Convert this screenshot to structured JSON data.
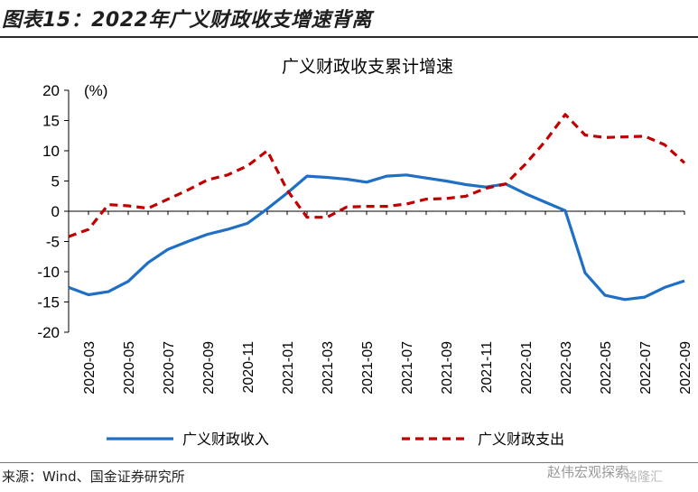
{
  "figure": {
    "label": "图表15：2022年广义财政收支增速背离",
    "source": "来源：Wind、国金证券研究所",
    "watermark": "赵伟宏观探索",
    "watermark2": "格隆汇"
  },
  "chart_data": {
    "type": "line",
    "title": "广义财政收支累计增速",
    "ylabel": "(%)",
    "ylim": [
      -20,
      20
    ],
    "yticks": [
      20,
      15,
      10,
      5,
      0,
      -5,
      -10,
      -15,
      -20
    ],
    "x": [
      "2020-02",
      "2020-03",
      "2020-04",
      "2020-05",
      "2020-06",
      "2020-07",
      "2020-08",
      "2020-09",
      "2020-10",
      "2020-11",
      "2020-12",
      "2021-01",
      "2021-02",
      "2021-03",
      "2021-04",
      "2021-05",
      "2021-06",
      "2021-07",
      "2021-08",
      "2021-09",
      "2021-10",
      "2021-11",
      "2021-12",
      "2022-01",
      "2022-02",
      "2022-03",
      "2022-04",
      "2022-05",
      "2022-06",
      "2022-07",
      "2022-08",
      "2022-09"
    ],
    "xtick_labels": [
      "2020-03",
      "2020-05",
      "2020-07",
      "2020-09",
      "2020-11",
      "2021-01",
      "2021-03",
      "2021-05",
      "2021-07",
      "2021-09",
      "2021-11",
      "2022-01",
      "2022-03",
      "2022-05",
      "2022-07",
      "2022-09"
    ],
    "series": [
      {
        "name": "广义财政收入",
        "color": "#1f6fc5",
        "style": "solid",
        "values": [
          -12.6,
          -13.8,
          -13.3,
          -11.6,
          -8.5,
          -6.3,
          -5.0,
          -3.8,
          -3.0,
          -2.0,
          0.4,
          3.0,
          5.8,
          5.6,
          5.3,
          4.8,
          5.8,
          6.0,
          5.5,
          5.0,
          4.4,
          4.0,
          4.5,
          2.9,
          1.5,
          0.1,
          -10.2,
          -13.9,
          -14.6,
          -14.2,
          -12.6,
          -11.5
        ]
      },
      {
        "name": "广义财政支出",
        "color": "#c00000",
        "style": "dashed",
        "values": [
          -4.2,
          -3.0,
          1.1,
          0.9,
          0.5,
          2.0,
          3.5,
          5.2,
          6.0,
          7.5,
          10.0,
          3.5,
          -1.0,
          -1.0,
          0.7,
          0.8,
          0.8,
          1.2,
          2.0,
          2.1,
          2.5,
          3.8,
          4.5,
          7.8,
          11.6,
          16.0,
          12.6,
          12.2,
          12.3,
          12.4,
          11.0,
          8.0
        ]
      }
    ],
    "grid": false,
    "legend_position": "bottom"
  }
}
